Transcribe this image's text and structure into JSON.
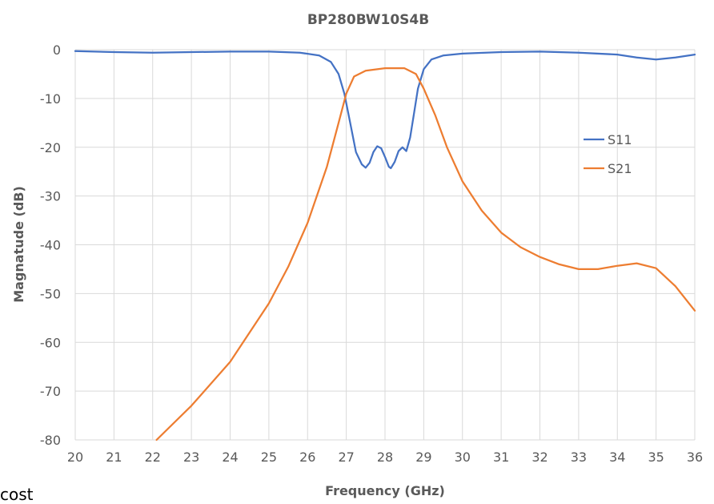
{
  "chart_data": {
    "type": "line",
    "title": "BP280BW10S4B",
    "xlabel": "Frequency (GHz)",
    "ylabel": "Magnatude (dB)",
    "xlim": [
      20,
      36
    ],
    "ylim": [
      -80,
      0
    ],
    "xticks": [
      20,
      21,
      22,
      23,
      24,
      25,
      26,
      27,
      28,
      29,
      30,
      31,
      32,
      33,
      34,
      35,
      36
    ],
    "yticks": [
      0,
      -10,
      -20,
      -30,
      -40,
      -50,
      -60,
      -70,
      -80
    ],
    "grid": true,
    "legend_position": "right",
    "series": [
      {
        "name": "S11",
        "color": "#4472C4",
        "points": [
          [
            20,
            -0.3
          ],
          [
            21,
            -0.5
          ],
          [
            22,
            -0.6
          ],
          [
            23,
            -0.5
          ],
          [
            24,
            -0.4
          ],
          [
            25,
            -0.4
          ],
          [
            25.8,
            -0.6
          ],
          [
            26.3,
            -1.2
          ],
          [
            26.6,
            -2.5
          ],
          [
            26.8,
            -5
          ],
          [
            26.95,
            -9
          ],
          [
            27.1,
            -15
          ],
          [
            27.25,
            -21
          ],
          [
            27.4,
            -23.5
          ],
          [
            27.5,
            -24.2
          ],
          [
            27.6,
            -23.2
          ],
          [
            27.7,
            -21
          ],
          [
            27.8,
            -19.8
          ],
          [
            27.9,
            -20.2
          ],
          [
            28.0,
            -22
          ],
          [
            28.1,
            -24
          ],
          [
            28.15,
            -24.3
          ],
          [
            28.25,
            -23
          ],
          [
            28.35,
            -20.8
          ],
          [
            28.45,
            -20
          ],
          [
            28.55,
            -20.8
          ],
          [
            28.65,
            -18
          ],
          [
            28.75,
            -13
          ],
          [
            28.85,
            -8
          ],
          [
            29.0,
            -4
          ],
          [
            29.2,
            -2
          ],
          [
            29.5,
            -1.2
          ],
          [
            30,
            -0.8
          ],
          [
            31,
            -0.5
          ],
          [
            32,
            -0.4
          ],
          [
            33,
            -0.6
          ],
          [
            34,
            -1.0
          ],
          [
            34.5,
            -1.6
          ],
          [
            35,
            -2.0
          ],
          [
            35.5,
            -1.6
          ],
          [
            36,
            -1.0
          ]
        ]
      },
      {
        "name": "S21",
        "color": "#ED7D31",
        "points": [
          [
            22.1,
            -80
          ],
          [
            23,
            -73
          ],
          [
            24,
            -64
          ],
          [
            25,
            -52
          ],
          [
            25.5,
            -44.5
          ],
          [
            26,
            -35.5
          ],
          [
            26.5,
            -24
          ],
          [
            26.8,
            -15
          ],
          [
            27.0,
            -9
          ],
          [
            27.2,
            -5.5
          ],
          [
            27.5,
            -4.3
          ],
          [
            28.0,
            -3.8
          ],
          [
            28.5,
            -3.8
          ],
          [
            28.8,
            -5
          ],
          [
            29.0,
            -8
          ],
          [
            29.3,
            -13.5
          ],
          [
            29.6,
            -20
          ],
          [
            30,
            -27
          ],
          [
            30.5,
            -33
          ],
          [
            31,
            -37.5
          ],
          [
            31.5,
            -40.5
          ],
          [
            32,
            -42.5
          ],
          [
            32.5,
            -44
          ],
          [
            33,
            -45
          ],
          [
            33.5,
            -45
          ],
          [
            34,
            -44.3
          ],
          [
            34.5,
            -43.8
          ],
          [
            35,
            -44.8
          ],
          [
            35.5,
            -48.5
          ],
          [
            36,
            -53.5
          ]
        ]
      }
    ]
  },
  "stray_text": "cost"
}
